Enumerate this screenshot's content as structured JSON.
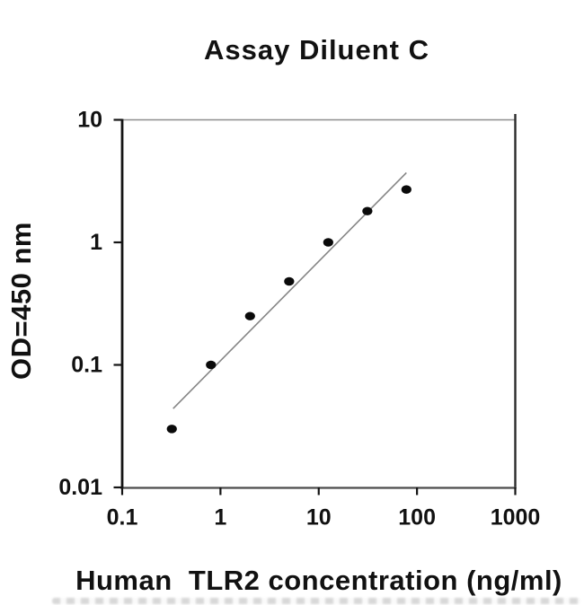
{
  "page": {
    "background_color": "#ffffff",
    "text_color": "#111111"
  },
  "chart_data": {
    "type": "scatter",
    "title": "Assay Diluent C",
    "xlabel": "Human  TLR2 concentration (ng/ml)",
    "ylabel": "OD=450 nm",
    "x_scale": "log",
    "y_scale": "log",
    "xlim": [
      0.1,
      1000
    ],
    "ylim": [
      0.01,
      10
    ],
    "grid": false,
    "legend": null,
    "x": [
      0.32,
      0.8,
      2,
      5,
      12.5,
      31.25,
      78
    ],
    "y": [
      0.03,
      0.1,
      0.25,
      0.48,
      1.0,
      1.8,
      2.7
    ],
    "fit_line": {
      "x1": 0.33,
      "y1": 0.044,
      "x2": 78,
      "y2": 3.7
    },
    "x_ticks": [
      {
        "value": 0.1,
        "label": "0.1"
      },
      {
        "value": 1,
        "label": "1"
      },
      {
        "value": 10,
        "label": "10"
      },
      {
        "value": 100,
        "label": "100"
      },
      {
        "value": 1000,
        "label": "1000"
      }
    ],
    "y_ticks": [
      {
        "value": 10,
        "label": "10"
      },
      {
        "value": 1,
        "label": "1"
      },
      {
        "value": 0.1,
        "label": "0.1"
      },
      {
        "value": 0.01,
        "label": "0.01"
      }
    ],
    "marker": {
      "shape": "ellipse",
      "color": "#0a0a0a"
    },
    "fit_line_color": "#858585",
    "axis_colors": {
      "left": "#141414",
      "bottom": "#4c4c4c",
      "top": "#8d8d8d",
      "right": "#2b2b2b"
    }
  }
}
